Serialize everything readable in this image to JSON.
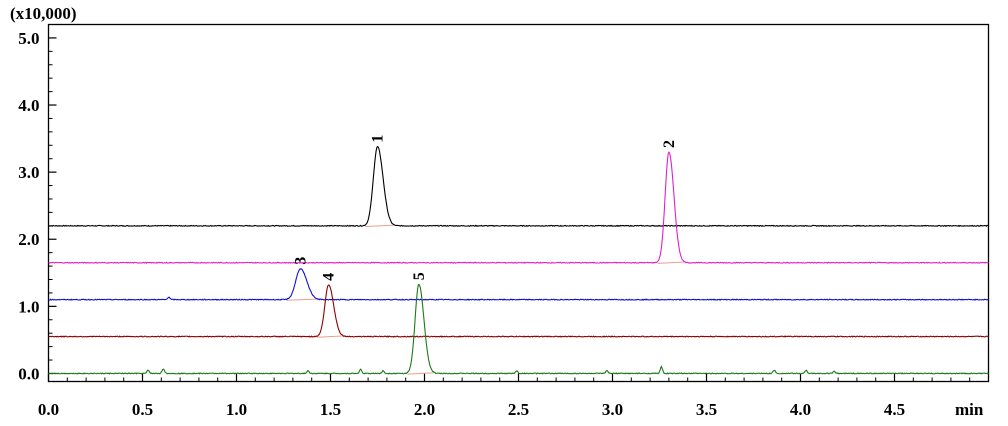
{
  "chart_data": {
    "type": "line",
    "y_multiplier_label": "(x10,000)",
    "xlabel": "min",
    "xlim": [
      0.0,
      5.0
    ],
    "ylim": [
      -0.12,
      5.2
    ],
    "x_ticks": [
      "0.0",
      "0.5",
      "1.0",
      "1.5",
      "2.0",
      "2.5",
      "3.0",
      "3.5",
      "4.0",
      "4.5"
    ],
    "y_ticks": [
      "0.0",
      "1.0",
      "2.0",
      "3.0",
      "4.0",
      "5.0"
    ],
    "grid": false,
    "series": [
      {
        "color": "#000000",
        "baseline": 2.2,
        "peaks": [
          {
            "label": "1",
            "x": 1.75,
            "height": 3.38,
            "width": 0.022
          }
        ],
        "noise": []
      },
      {
        "color": "#e020d0",
        "baseline": 1.65,
        "peaks": [
          {
            "label": "2",
            "x": 3.3,
            "height": 3.3,
            "width": 0.02
          }
        ],
        "noise": []
      },
      {
        "color": "#1010d0",
        "baseline": 1.1,
        "peaks": [
          {
            "label": "3",
            "x": 1.34,
            "height": 1.56,
            "width": 0.025
          }
        ],
        "noise": [
          {
            "x": 0.64,
            "height": 1.14
          }
        ]
      },
      {
        "color": "#8b0000",
        "baseline": 0.55,
        "peaks": [
          {
            "label": "4",
            "x": 1.49,
            "height": 1.32,
            "width": 0.02
          }
        ],
        "noise": []
      },
      {
        "color": "#1a7a1a",
        "baseline": 0.0,
        "peaks": [
          {
            "label": "5",
            "x": 1.97,
            "height": 1.33,
            "width": 0.02
          }
        ],
        "noise": [
          {
            "x": 0.53,
            "height": 0.05
          },
          {
            "x": 0.61,
            "height": 0.07
          },
          {
            "x": 1.38,
            "height": 0.04
          },
          {
            "x": 1.66,
            "height": 0.06
          },
          {
            "x": 1.78,
            "height": 0.04
          },
          {
            "x": 2.49,
            "height": 0.04
          },
          {
            "x": 2.97,
            "height": 0.04
          },
          {
            "x": 3.26,
            "height": 0.1
          },
          {
            "x": 3.86,
            "height": 0.05
          },
          {
            "x": 4.03,
            "height": 0.05
          },
          {
            "x": 4.18,
            "height": 0.03
          }
        ]
      }
    ]
  }
}
